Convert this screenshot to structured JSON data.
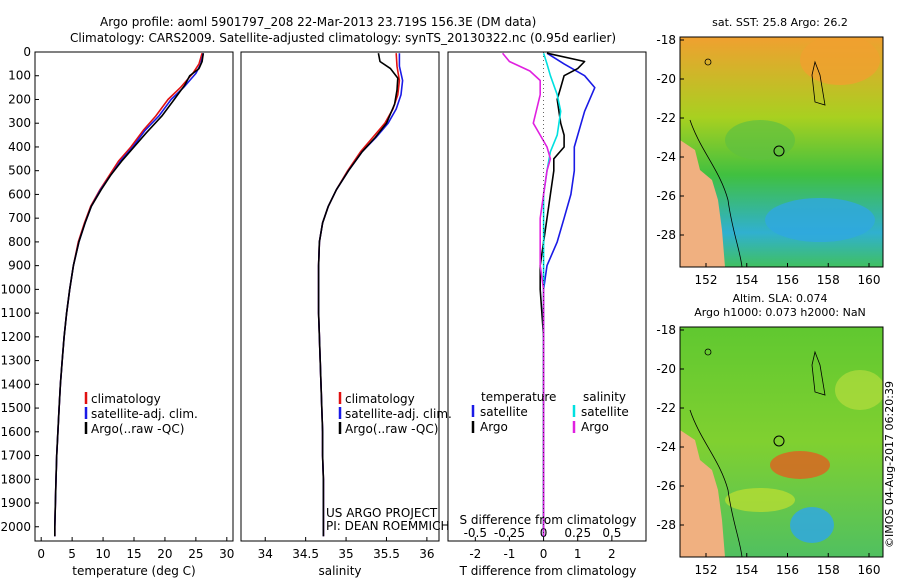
{
  "header": {
    "line1": "Argo profile: aoml 5901797_208 22-Mar-2013 23.719S 156.3E (DM data)",
    "line2": "Climatology: CARS2009. Satellite-adjusted climatology: synTS_20130322.nc (0.95d earlier)"
  },
  "colors": {
    "climatology": "#e01010",
    "satellite": "#1a1ae6",
    "argo": "#000000",
    "salinity_sat": "#00e0e0",
    "salinity_argo": "#e020e0",
    "land": "#f0b080"
  },
  "chart_data": [
    {
      "name": "temperature",
      "type": "line",
      "xlabel": "temperature (deg C)",
      "xlim": [
        -1,
        31
      ],
      "xticks": [
        0,
        5,
        10,
        15,
        20,
        25,
        30
      ],
      "ylim": [
        2060,
        0
      ],
      "yticks": [
        0,
        100,
        200,
        300,
        400,
        500,
        600,
        700,
        800,
        900,
        1000,
        1100,
        1200,
        1300,
        1400,
        1500,
        1600,
        1700,
        1800,
        1900,
        2000
      ],
      "legend": [
        "climatology",
        "satellite-adj. clim.",
        "Argo(..raw -QC)"
      ],
      "series": [
        {
          "name": "climatology",
          "color": "#e01010",
          "points": [
            [
              26.0,
              5
            ],
            [
              25.5,
              50
            ],
            [
              24.5,
              90
            ],
            [
              22.5,
              150
            ],
            [
              20.5,
              200
            ],
            [
              18.5,
              270
            ],
            [
              16.5,
              330
            ],
            [
              14.5,
              400
            ],
            [
              12.5,
              460
            ],
            [
              11.0,
              520
            ],
            [
              9.5,
              580
            ],
            [
              8.0,
              650
            ],
            [
              7.0,
              720
            ],
            [
              6.0,
              800
            ],
            [
              5.2,
              900
            ],
            [
              4.6,
              1000
            ],
            [
              4.1,
              1100
            ],
            [
              3.7,
              1200
            ],
            [
              3.4,
              1300
            ],
            [
              3.1,
              1400
            ],
            [
              2.9,
              1500
            ],
            [
              2.7,
              1600
            ],
            [
              2.5,
              1700
            ],
            [
              2.4,
              1800
            ],
            [
              2.3,
              1900
            ],
            [
              2.2,
              2000
            ],
            [
              2.2,
              2040
            ]
          ]
        },
        {
          "name": "satellite",
          "color": "#1a1ae6",
          "points": [
            [
              26.2,
              5
            ],
            [
              25.8,
              50
            ],
            [
              25.0,
              90
            ],
            [
              23.0,
              150
            ],
            [
              21.0,
              200
            ],
            [
              19.0,
              270
            ],
            [
              16.8,
              330
            ],
            [
              14.8,
              400
            ],
            [
              12.8,
              460
            ],
            [
              11.2,
              520
            ],
            [
              9.6,
              580
            ],
            [
              8.1,
              650
            ],
            [
              7.1,
              720
            ],
            [
              6.1,
              800
            ],
            [
              5.2,
              900
            ],
            [
              4.6,
              1000
            ],
            [
              4.1,
              1100
            ],
            [
              3.7,
              1200
            ],
            [
              3.4,
              1300
            ],
            [
              3.1,
              1400
            ],
            [
              2.9,
              1500
            ],
            [
              2.7,
              1600
            ],
            [
              2.5,
              1700
            ],
            [
              2.4,
              1800
            ],
            [
              2.3,
              1900
            ],
            [
              2.2,
              2000
            ],
            [
              2.2,
              2040
            ]
          ]
        },
        {
          "name": "argo",
          "color": "#000000",
          "points": [
            [
              26.2,
              5
            ],
            [
              26.0,
              40
            ],
            [
              25.5,
              70
            ],
            [
              24.0,
              100
            ],
            [
              23.2,
              140
            ],
            [
              21.5,
              200
            ],
            [
              19.5,
              270
            ],
            [
              17.0,
              340
            ],
            [
              15.0,
              400
            ],
            [
              13.0,
              460
            ],
            [
              11.2,
              520
            ],
            [
              9.7,
              580
            ],
            [
              8.1,
              650
            ],
            [
              7.1,
              720
            ],
            [
              6.1,
              800
            ],
            [
              5.2,
              900
            ],
            [
              4.6,
              1000
            ],
            [
              4.1,
              1100
            ],
            [
              3.7,
              1200
            ],
            [
              3.4,
              1300
            ],
            [
              3.1,
              1400
            ],
            [
              2.9,
              1500
            ],
            [
              2.7,
              1600
            ],
            [
              2.5,
              1700
            ],
            [
              2.4,
              1800
            ],
            [
              2.3,
              1900
            ],
            [
              2.2,
              2000
            ],
            [
              2.2,
              2040
            ]
          ]
        }
      ]
    },
    {
      "name": "salinity",
      "type": "line",
      "xlabel": "salinity",
      "xlim": [
        33.7,
        36.15
      ],
      "xticks": [
        34,
        34.5,
        35,
        35.5,
        36
      ],
      "ylim": [
        2060,
        0
      ],
      "legend": [
        "climatology",
        "satellite-adj. clim.",
        "Argo(..raw -QC)"
      ],
      "annotations": [
        "US ARGO PROJECT",
        "PI: DEAN ROEMMICH"
      ],
      "series": [
        {
          "name": "climatology",
          "color": "#e01010",
          "points": [
            [
              35.62,
              5
            ],
            [
              35.63,
              60
            ],
            [
              35.66,
              120
            ],
            [
              35.64,
              180
            ],
            [
              35.58,
              240
            ],
            [
              35.48,
              300
            ],
            [
              35.33,
              360
            ],
            [
              35.18,
              420
            ],
            [
              35.02,
              500
            ],
            [
              34.88,
              580
            ],
            [
              34.78,
              650
            ],
            [
              34.71,
              720
            ],
            [
              34.67,
              800
            ],
            [
              34.66,
              900
            ],
            [
              34.66,
              1000
            ],
            [
              34.66,
              1100
            ],
            [
              34.67,
              1200
            ],
            [
              34.68,
              1300
            ],
            [
              34.69,
              1400
            ],
            [
              34.7,
              1500
            ],
            [
              34.71,
              1600
            ],
            [
              34.71,
              1700
            ],
            [
              34.72,
              1800
            ],
            [
              34.72,
              1900
            ],
            [
              34.72,
              2000
            ],
            [
              34.72,
              2040
            ]
          ]
        },
        {
          "name": "satellite",
          "color": "#1a1ae6",
          "points": [
            [
              35.66,
              5
            ],
            [
              35.66,
              60
            ],
            [
              35.7,
              120
            ],
            [
              35.68,
              180
            ],
            [
              35.62,
              240
            ],
            [
              35.52,
              300
            ],
            [
              35.37,
              360
            ],
            [
              35.2,
              420
            ],
            [
              35.03,
              500
            ],
            [
              34.88,
              580
            ],
            [
              34.78,
              650
            ],
            [
              34.71,
              720
            ],
            [
              34.67,
              800
            ],
            [
              34.66,
              900
            ],
            [
              34.66,
              1000
            ],
            [
              34.66,
              1100
            ],
            [
              34.67,
              1200
            ],
            [
              34.68,
              1300
            ],
            [
              34.69,
              1400
            ],
            [
              34.7,
              1500
            ],
            [
              34.71,
              1600
            ],
            [
              34.71,
              1700
            ],
            [
              34.72,
              1800
            ],
            [
              34.72,
              1900
            ],
            [
              34.72,
              2000
            ],
            [
              34.72,
              2040
            ]
          ]
        },
        {
          "name": "argo",
          "color": "#000000",
          "points": [
            [
              35.4,
              5
            ],
            [
              35.42,
              40
            ],
            [
              35.55,
              70
            ],
            [
              35.64,
              110
            ],
            [
              35.63,
              160
            ],
            [
              35.6,
              220
            ],
            [
              35.5,
              300
            ],
            [
              35.36,
              360
            ],
            [
              35.2,
              420
            ],
            [
              35.03,
              500
            ],
            [
              34.88,
              580
            ],
            [
              34.78,
              650
            ],
            [
              34.71,
              720
            ],
            [
              34.67,
              800
            ],
            [
              34.66,
              900
            ],
            [
              34.66,
              1000
            ],
            [
              34.66,
              1100
            ],
            [
              34.67,
              1200
            ],
            [
              34.68,
              1300
            ],
            [
              34.69,
              1400
            ],
            [
              34.7,
              1500
            ],
            [
              34.71,
              1600
            ],
            [
              34.71,
              1700
            ],
            [
              34.72,
              1800
            ],
            [
              34.72,
              1900
            ],
            [
              34.72,
              2000
            ],
            [
              34.72,
              2040
            ]
          ]
        }
      ]
    },
    {
      "name": "difference",
      "type": "line",
      "xlabel": "T difference from climatology",
      "xlabel2": "S difference from climatology",
      "xlim": [
        -2.8,
        3.0
      ],
      "xticks": [
        -2,
        -1,
        0,
        1,
        2
      ],
      "xticks_top": [
        "-0.5",
        "-0.25",
        "0",
        "0.25",
        "0.5"
      ],
      "ylim": [
        2060,
        0
      ],
      "legend_t_title": "temperature",
      "legend_s_title": "salinity",
      "legend_t": [
        "satellite",
        "Argo"
      ],
      "legend_s": [
        "satellite",
        "Argo"
      ],
      "series": [
        {
          "name": "T satellite",
          "color": "#1a1ae6",
          "points": [
            [
              0.1,
              5
            ],
            [
              0.6,
              50
            ],
            [
              1.2,
              100
            ],
            [
              1.5,
              150
            ],
            [
              1.2,
              250
            ],
            [
              0.9,
              400
            ],
            [
              0.9,
              500
            ],
            [
              0.8,
              600
            ],
            [
              0.6,
              700
            ],
            [
              0.4,
              800
            ],
            [
              0.1,
              900
            ],
            [
              0.0,
              1000
            ],
            [
              0.0,
              2040
            ]
          ]
        },
        {
          "name": "T argo",
          "color": "#000000",
          "points": [
            [
              0.1,
              5
            ],
            [
              1.2,
              40
            ],
            [
              1.0,
              70
            ],
            [
              0.6,
              100
            ],
            [
              0.5,
              150
            ],
            [
              0.4,
              200
            ],
            [
              0.5,
              300
            ],
            [
              0.6,
              350
            ],
            [
              0.6,
              400
            ],
            [
              0.3,
              450
            ],
            [
              0.3,
              500
            ],
            [
              0.2,
              600
            ],
            [
              0.1,
              700
            ],
            [
              0.0,
              800
            ],
            [
              -0.1,
              900
            ],
            [
              -0.1,
              1000
            ],
            [
              0.0,
              1200
            ],
            [
              0.0,
              2040
            ]
          ]
        },
        {
          "name": "S satellite",
          "color": "#00e0e0",
          "points": [
            [
              0.0,
              5
            ],
            [
              0.1,
              50
            ],
            [
              0.2,
              100
            ],
            [
              0.4,
              180
            ],
            [
              0.5,
              250
            ],
            [
              0.4,
              350
            ],
            [
              0.2,
              420
            ],
            [
              0.1,
              500
            ],
            [
              0.0,
              600
            ],
            [
              0.0,
              2040
            ]
          ]
        },
        {
          "name": "S argo",
          "color": "#e020e0",
          "points": [
            [
              -1.2,
              5
            ],
            [
              -1.0,
              40
            ],
            [
              -0.4,
              80
            ],
            [
              -0.1,
              120
            ],
            [
              -0.1,
              180
            ],
            [
              -0.3,
              300
            ],
            [
              -0.1,
              350
            ],
            [
              0.1,
              400
            ],
            [
              0.2,
              450
            ],
            [
              0.1,
              500
            ],
            [
              0.0,
              600
            ],
            [
              -0.1,
              700
            ],
            [
              -0.1,
              900
            ],
            [
              0.0,
              1000
            ],
            [
              0.0,
              2040
            ]
          ]
        }
      ]
    }
  ],
  "maps": [
    {
      "name": "sst-map",
      "title": "sat. SST: 25.8  Argo: 26.2",
      "xticks": [
        "152",
        "154",
        "156",
        "158",
        "160"
      ],
      "yticks": [
        "-18",
        "-20",
        "-22",
        "-24",
        "-26",
        "-28"
      ]
    },
    {
      "name": "sla-map",
      "title_line1": "Altim. SLA: 0.074",
      "title_line2": "Argo h1000: 0.073 h2000: NaN",
      "xticks": [
        "152",
        "154",
        "156",
        "158",
        "160"
      ],
      "yticks": [
        "-18",
        "-20",
        "-22",
        "-24",
        "-26",
        "-28"
      ]
    }
  ],
  "credit": "©IMOS 04-Aug-2017 06:20:39"
}
